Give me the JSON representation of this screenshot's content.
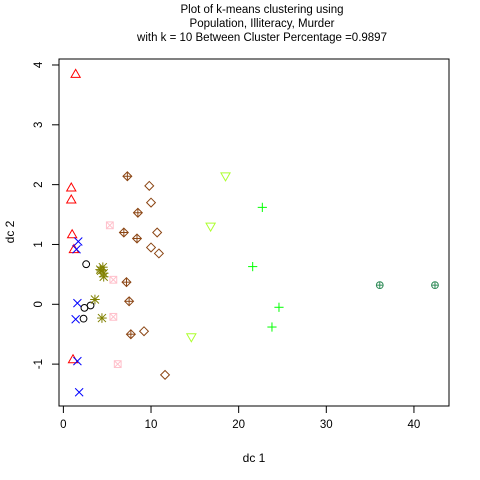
{
  "chart_data": {
    "type": "scatter",
    "title_lines": [
      "Plot of k-means clustering using",
      "Population, Illiteracy, Murder",
      "with  k = 10 Between Cluster Percentage =0.9897"
    ],
    "xlabel": "dc 1",
    "ylabel": "dc 2",
    "xlim": [
      -0.5,
      44
    ],
    "ylim": [
      -1.7,
      4.1
    ],
    "x_ticks": [
      0,
      10,
      20,
      30,
      40
    ],
    "y_ticks": [
      -1,
      0,
      1,
      2,
      3,
      4
    ],
    "grid": false,
    "series": [
      {
        "marker": "triangle-up",
        "color": "#ff0000",
        "points": [
          [
            1.4,
            3.85
          ],
          [
            0.9,
            1.95
          ],
          [
            0.9,
            1.75
          ],
          [
            1.0,
            1.17
          ],
          [
            1.2,
            0.92
          ],
          [
            1.1,
            -0.92
          ]
        ]
      },
      {
        "marker": "cross-x",
        "color": "#0000ff",
        "points": [
          [
            1.7,
            1.05
          ],
          [
            1.5,
            0.92
          ],
          [
            1.6,
            0.02
          ],
          [
            1.4,
            -0.25
          ],
          [
            1.6,
            -0.95
          ],
          [
            1.8,
            -1.47
          ]
        ]
      },
      {
        "marker": "circle",
        "color": "#000000",
        "points": [
          [
            2.6,
            0.67
          ],
          [
            2.4,
            -0.06
          ],
          [
            3.1,
            -0.02
          ],
          [
            2.3,
            -0.24
          ]
        ]
      },
      {
        "marker": "asterisk",
        "color": "#808000",
        "points": [
          [
            4.5,
            0.62
          ],
          [
            4.3,
            0.56
          ],
          [
            4.6,
            0.52
          ],
          [
            4.2,
            0.58
          ],
          [
            4.6,
            0.46
          ],
          [
            3.6,
            0.08
          ],
          [
            4.4,
            -0.23
          ]
        ]
      },
      {
        "marker": "square-x",
        "color": "#ffc0cb",
        "points": [
          [
            5.3,
            1.32
          ],
          [
            5.7,
            0.41
          ],
          [
            5.7,
            -0.21
          ],
          [
            6.2,
            -1.0
          ]
        ]
      },
      {
        "marker": "diamond",
        "color": "#8b4513",
        "points": [
          [
            9.8,
            1.98
          ],
          [
            10.0,
            1.7
          ],
          [
            10.7,
            1.2
          ],
          [
            10.0,
            0.95
          ],
          [
            10.9,
            0.85
          ],
          [
            9.2,
            -0.45
          ],
          [
            11.6,
            -1.18
          ]
        ]
      },
      {
        "marker": "diamond-plus",
        "color": "#8b4513",
        "points": [
          [
            7.3,
            2.14
          ],
          [
            8.5,
            1.53
          ],
          [
            6.9,
            1.2
          ],
          [
            8.4,
            1.1
          ],
          [
            7.2,
            0.37
          ],
          [
            7.5,
            0.05
          ],
          [
            7.7,
            -0.5
          ]
        ]
      },
      {
        "marker": "triangle-down",
        "color": "#adff2f",
        "points": [
          [
            18.5,
            2.14
          ],
          [
            16.8,
            1.3
          ],
          [
            14.6,
            -0.55
          ]
        ]
      },
      {
        "marker": "plus",
        "color": "#00ff00",
        "points": [
          [
            22.7,
            1.62
          ],
          [
            21.6,
            0.63
          ],
          [
            24.6,
            -0.05
          ],
          [
            23.8,
            -0.38
          ]
        ]
      },
      {
        "marker": "circle-plus",
        "color": "#2e8b57",
        "points": [
          [
            36.1,
            0.32
          ],
          [
            42.4,
            0.32
          ]
        ]
      }
    ]
  }
}
